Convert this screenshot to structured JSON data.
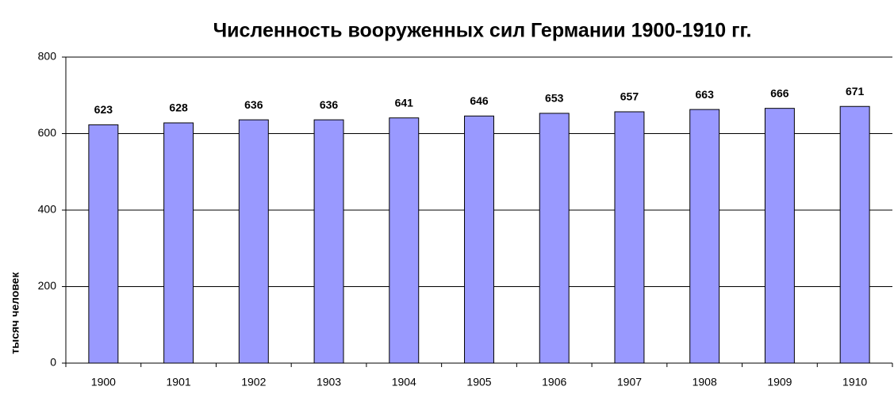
{
  "chart_data": {
    "type": "bar",
    "title": "Численность вооруженных сил Германии 1900-1910 гг.",
    "y_label": "тысяч человек",
    "categories": [
      "1900",
      "1901",
      "1902",
      "1903",
      "1904",
      "1905",
      "1906",
      "1907",
      "1908",
      "1909",
      "1910"
    ],
    "values": [
      623,
      628,
      636,
      636,
      641,
      646,
      653,
      657,
      663,
      666,
      671
    ],
    "color": "#9999ff",
    "ylim": [
      0,
      800
    ],
    "yticks": [
      0,
      200,
      400,
      600,
      800
    ],
    "grid": true
  }
}
